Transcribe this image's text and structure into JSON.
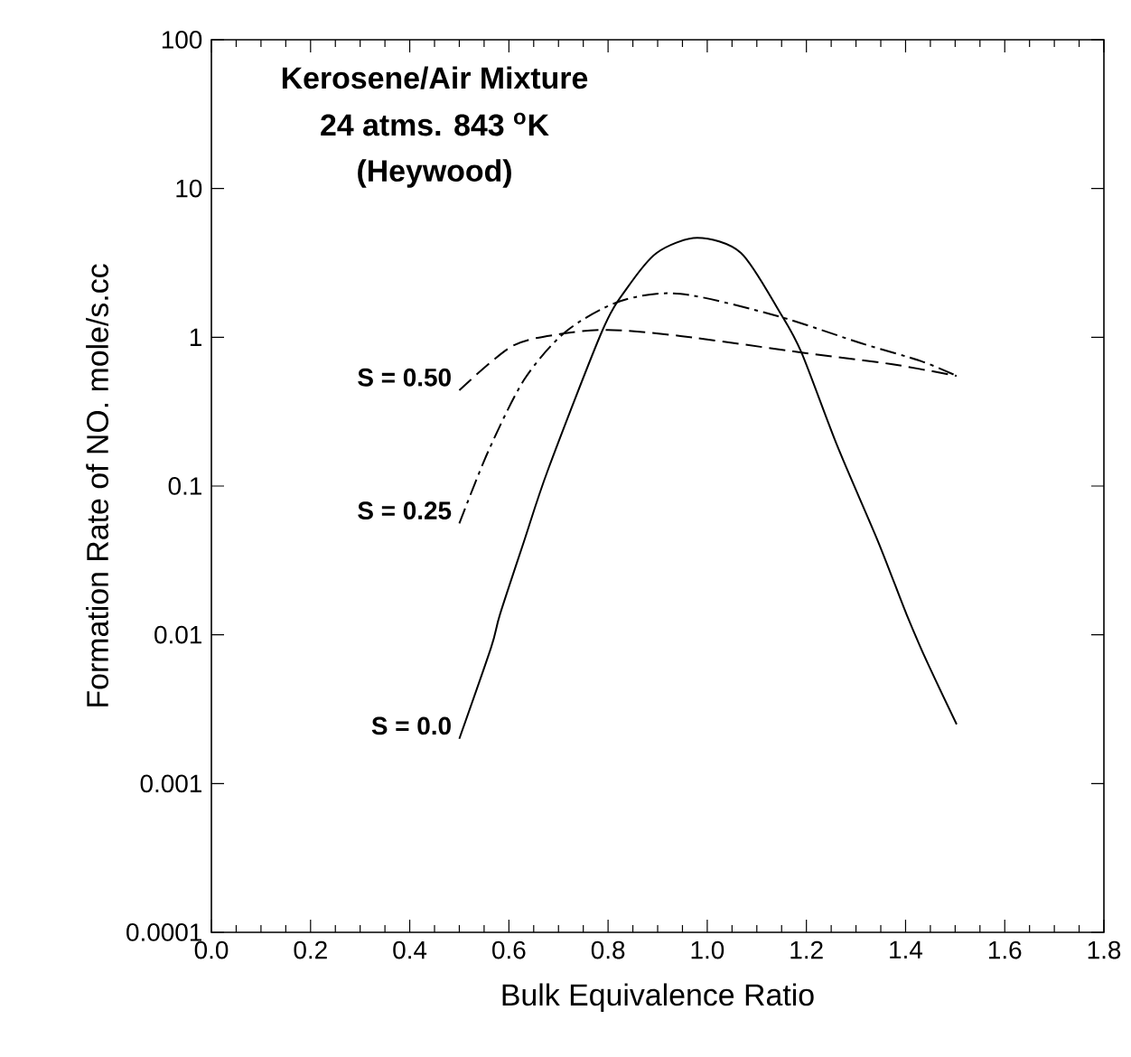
{
  "chart_data": {
    "type": "line",
    "xlabel": "Bulk Equivalence Ratio",
    "ylabel": "Formation Rate of NO. mole/s.cc",
    "annotations": [
      "Kerosene/Air Mixture",
      "24 atms. 843 $^{o}$K",
      "(Heywood)"
    ],
    "log": "y",
    "xlim": [
      0,
      1.8
    ],
    "ylim": [
      0.0001,
      100
    ],
    "xticks": [
      {
        "value": 0,
        "label": "0.0"
      },
      0.2,
      0.4,
      0.6,
      0.8,
      {
        "value": 1,
        "label": "1.0"
      },
      1.2,
      1.4,
      1.6,
      1.8
    ],
    "yticks": [
      0.0001,
      0.001,
      0.01,
      0.1,
      1,
      10,
      100
    ],
    "grid": false,
    "legend": false,
    "marker": "none",
    "series": [
      {
        "name": "S = 0.50",
        "color": "#000000",
        "line_style": "dashed",
        "x": [
          0.5,
          0.606,
          0.703,
          0.8,
          0.946,
          1.19,
          1.371,
          1.503
        ],
        "values": [
          0.44,
          0.87,
          1.05,
          1.12,
          1.02,
          0.79,
          0.66,
          0.55
        ]
      },
      {
        "name": "S = 0.25",
        "color": "#000000",
        "line_style": "dashdotted",
        "x": [
          0.5,
          0.558,
          0.631,
          0.716,
          0.825,
          0.946,
          1.141,
          1.311,
          1.432,
          1.503
        ],
        "values": [
          0.056,
          0.17,
          0.52,
          1.1,
          1.75,
          1.96,
          1.39,
          0.91,
          0.69,
          0.55
        ]
      },
      {
        "name": "S = 0.0",
        "color": "#000000",
        "line_style": "solid",
        "x": [
          0.5,
          0.564,
          0.582,
          0.63,
          0.679,
          0.788,
          0.837,
          0.898,
          0.98,
          1.068,
          1.147,
          1.19,
          1.262,
          1.345,
          1.402,
          1.444,
          1.503
        ],
        "values": [
          0.002,
          0.0082,
          0.0137,
          0.042,
          0.129,
          1.1,
          2.11,
          3.69,
          4.66,
          3.69,
          1.46,
          0.79,
          0.187,
          0.042,
          0.0137,
          0.0065,
          0.0025
        ]
      }
    ]
  }
}
